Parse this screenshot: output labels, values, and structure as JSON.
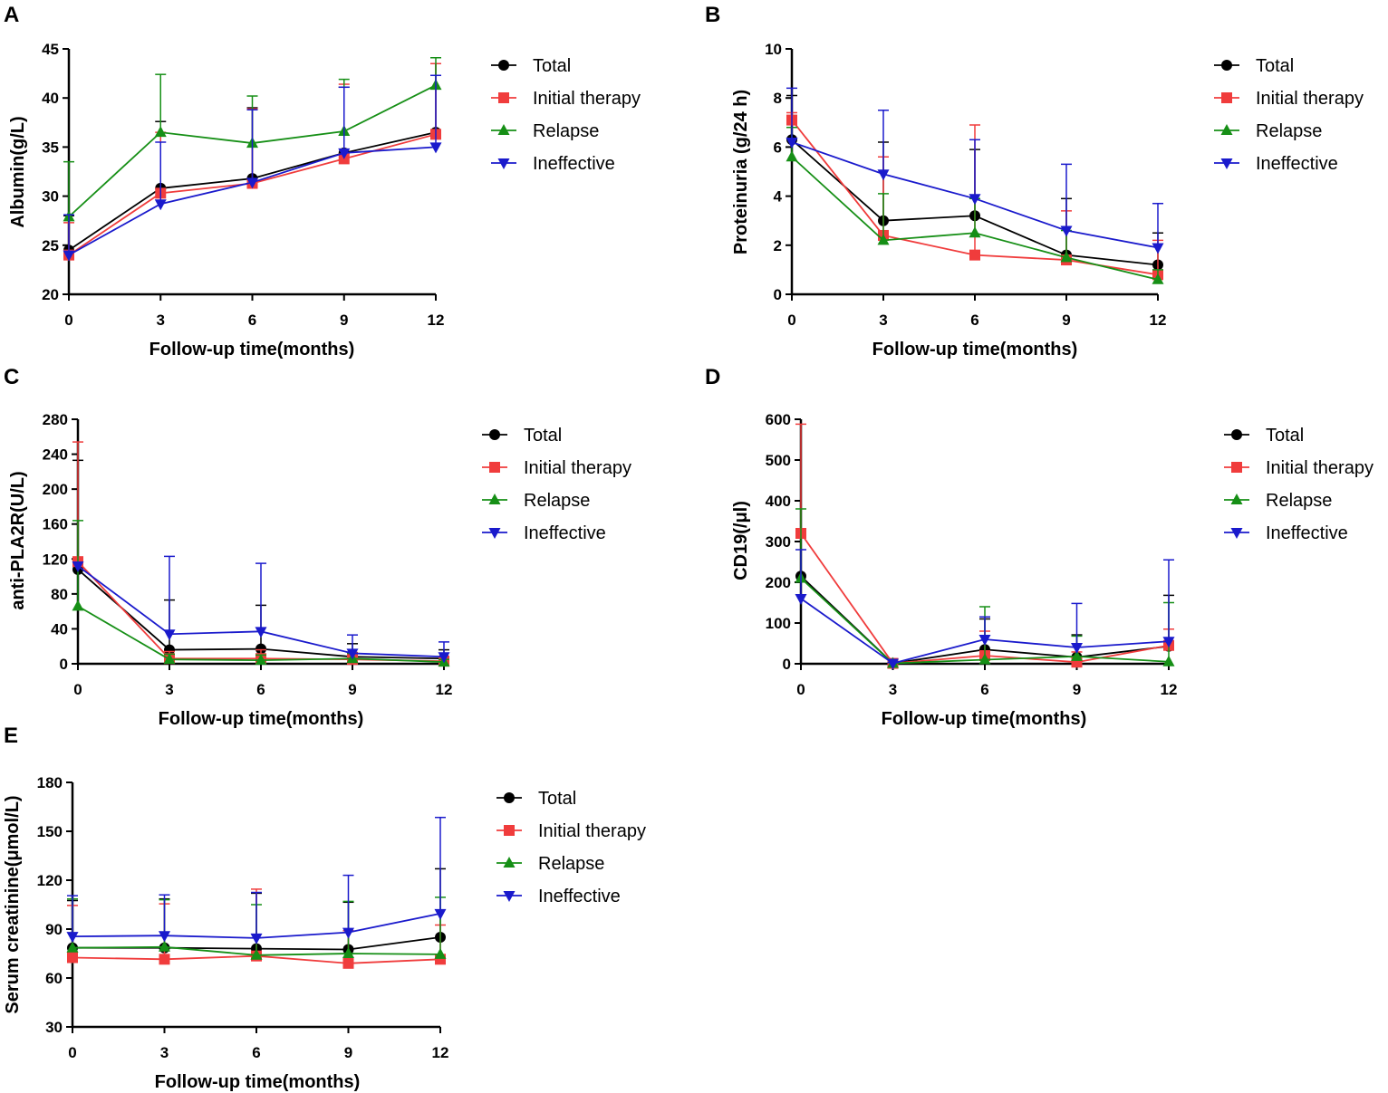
{
  "chart_data": [
    {
      "panel": "A",
      "type": "line",
      "title": "",
      "xlabel": "Follow-up time(months)",
      "ylabel": "Albumin(g/L)",
      "x": [
        0,
        3,
        6,
        9,
        12
      ],
      "xticks": [
        "0",
        "3",
        "6",
        "9",
        "12"
      ],
      "yticks": [
        "20",
        "25",
        "30",
        "35",
        "40",
        "45"
      ],
      "ylim": [
        20,
        45
      ],
      "legend_position": "right",
      "series": [
        {
          "name": "Total",
          "marker": "circle",
          "color": "#000000",
          "values": [
            24.5,
            30.8,
            31.8,
            34.4,
            36.5
          ],
          "error": [
            3.5,
            6.8,
            7.2,
            6.7,
            7.0
          ]
        },
        {
          "name": "Initial therapy",
          "marker": "square",
          "color": "#f03c3c",
          "values": [
            24.0,
            30.3,
            31.3,
            33.8,
            36.3
          ],
          "error": [
            3.3,
            6.2,
            7.6,
            7.6,
            7.2
          ]
        },
        {
          "name": "Relapse",
          "marker": "triangle-up",
          "color": "#168f16",
          "values": [
            27.9,
            36.5,
            35.4,
            36.6,
            41.3
          ],
          "error": [
            5.6,
            5.9,
            4.8,
            5.3,
            2.8
          ]
        },
        {
          "name": "Ineffective",
          "marker": "triangle-down",
          "color": "#1a1acc",
          "values": [
            24.0,
            29.2,
            31.4,
            34.4,
            35.0
          ],
          "error": [
            4.1,
            6.3,
            7.4,
            6.7,
            7.3
          ]
        }
      ]
    },
    {
      "panel": "B",
      "type": "line",
      "title": "",
      "xlabel": "Follow-up time(months)",
      "ylabel": "Proteinuria (g/24 h)",
      "x": [
        0,
        3,
        6,
        9,
        12
      ],
      "xticks": [
        "0",
        "3",
        "6",
        "9",
        "12"
      ],
      "yticks": [
        "0",
        "2",
        "4",
        "6",
        "8",
        "10"
      ],
      "ylim": [
        0,
        10
      ],
      "legend_position": "right",
      "series": [
        {
          "name": "Total",
          "marker": "circle",
          "color": "#000000",
          "values": [
            6.3,
            3.0,
            3.2,
            1.6,
            1.2
          ],
          "error": [
            1.8,
            3.2,
            2.7,
            2.3,
            1.3
          ]
        },
        {
          "name": "Initial therapy",
          "marker": "square",
          "color": "#f03c3c",
          "values": [
            7.1,
            2.4,
            1.6,
            1.4,
            0.8
          ],
          "error": [
            0.3,
            3.2,
            5.3,
            2.0,
            1.4
          ]
        },
        {
          "name": "Relapse",
          "marker": "triangle-up",
          "color": "#168f16",
          "values": [
            5.6,
            2.2,
            2.5,
            1.5,
            0.6
          ],
          "error": [
            1.2,
            1.9,
            1.4,
            1.1,
            0.4
          ]
        },
        {
          "name": "Ineffective",
          "marker": "triangle-down",
          "color": "#1a1acc",
          "values": [
            6.2,
            4.9,
            3.9,
            2.6,
            1.9
          ],
          "error": [
            2.2,
            2.6,
            2.4,
            2.7,
            1.8
          ]
        }
      ]
    },
    {
      "panel": "C",
      "type": "line",
      "title": "",
      "xlabel": "Follow-up time(months)",
      "ylabel": "anti-PLA2R(U/L)",
      "x": [
        0,
        3,
        6,
        9,
        12
      ],
      "xticks": [
        "0",
        "3",
        "6",
        "9",
        "12"
      ],
      "yticks": [
        "0",
        "40",
        "80",
        "120",
        "160",
        "200",
        "240",
        "280"
      ],
      "ylim": [
        0,
        280
      ],
      "legend_position": "right",
      "series": [
        {
          "name": "Total",
          "marker": "circle",
          "color": "#000000",
          "values": [
            108,
            16,
            17,
            8,
            6
          ],
          "error": [
            125,
            57,
            50,
            15,
            10
          ]
        },
        {
          "name": "Initial therapy",
          "marker": "square",
          "color": "#f03c3c",
          "values": [
            117,
            6,
            6,
            5,
            3
          ],
          "error": [
            137,
            8,
            10,
            8,
            5
          ]
        },
        {
          "name": "Relapse",
          "marker": "triangle-up",
          "color": "#168f16",
          "values": [
            66,
            5,
            4,
            6,
            2
          ],
          "error": [
            98,
            6,
            6,
            6,
            3
          ]
        },
        {
          "name": "Ineffective",
          "marker": "triangle-down",
          "color": "#1a1acc",
          "values": [
            112,
            34,
            37,
            12,
            8
          ],
          "error": [
            0,
            89,
            78,
            21,
            17
          ]
        }
      ]
    },
    {
      "panel": "D",
      "type": "line",
      "title": "",
      "xlabel": "Follow-up time(months)",
      "ylabel": "CD19(/μl)",
      "x": [
        0,
        3,
        6,
        9,
        12
      ],
      "xticks": [
        "0",
        "3",
        "6",
        "9",
        "12"
      ],
      "yticks": [
        "0",
        "100",
        "200",
        "300",
        "400",
        "500",
        "600"
      ],
      "ylim": [
        0,
        600
      ],
      "legend_position": "right",
      "series": [
        {
          "name": "Total",
          "marker": "circle",
          "color": "#000000",
          "values": [
            215,
            1,
            35,
            16,
            43
          ],
          "error": [
            105,
            3,
            75,
            55,
            125
          ]
        },
        {
          "name": "Initial therapy",
          "marker": "square",
          "color": "#f03c3c",
          "values": [
            320,
            1,
            20,
            4,
            45
          ],
          "error": [
            268,
            2,
            60,
            25,
            40
          ]
        },
        {
          "name": "Relapse",
          "marker": "triangle-up",
          "color": "#168f16",
          "values": [
            210,
            1,
            10,
            18,
            5
          ],
          "error": [
            170,
            2,
            130,
            50,
            145
          ]
        },
        {
          "name": "Ineffective",
          "marker": "triangle-down",
          "color": "#1a1acc",
          "values": [
            160,
            1,
            60,
            40,
            55
          ],
          "error": [
            120,
            2,
            55,
            108,
            200
          ]
        }
      ]
    },
    {
      "panel": "E",
      "type": "line",
      "title": "",
      "xlabel": "Follow-up time(months)",
      "ylabel": "Serum creatinine(μmol/L)",
      "x": [
        0,
        3,
        6,
        9,
        12
      ],
      "xticks": [
        "0",
        "3",
        "6",
        "9",
        "12"
      ],
      "yticks": [
        "30",
        "60",
        "90",
        "120",
        "150",
        "180"
      ],
      "ylim": [
        30,
        180
      ],
      "legend_position": "right",
      "series": [
        {
          "name": "Total",
          "marker": "circle",
          "color": "#000000",
          "values": [
            78.5,
            78.5,
            78.0,
            77.5,
            85.0
          ],
          "error": [
            29,
            30,
            34,
            29,
            42
          ]
        },
        {
          "name": "Initial therapy",
          "marker": "square",
          "color": "#f03c3c",
          "values": [
            72.5,
            71.5,
            73.5,
            69.0,
            71.5
          ],
          "error": [
            32,
            34,
            41,
            20,
            21
          ]
        },
        {
          "name": "Relapse",
          "marker": "triangle-up",
          "color": "#168f16",
          "values": [
            78.5,
            79.0,
            74.0,
            75.0,
            74.5
          ],
          "error": [
            30,
            29,
            31,
            32,
            35
          ]
        },
        {
          "name": "Ineffective",
          "marker": "triangle-down",
          "color": "#1a1acc",
          "values": [
            85.5,
            86.0,
            84.5,
            88.0,
            99.5
          ],
          "error": [
            25,
            25,
            28,
            35,
            59
          ]
        }
      ]
    }
  ]
}
